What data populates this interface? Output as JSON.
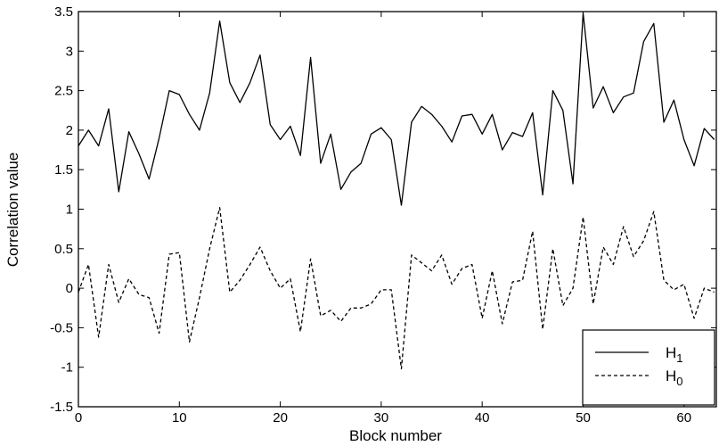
{
  "chart_data": {
    "type": "line",
    "title": "",
    "xlabel": "Block number",
    "ylabel": "Correlation value",
    "xlim": [
      0,
      64
    ],
    "ylim": [
      -1.5,
      3.5
    ],
    "xticks": [
      "0",
      "10",
      "20",
      "30",
      "40",
      "50",
      "60"
    ],
    "yticks": [
      "-1.5",
      "-1",
      "-0.5",
      "0",
      "0.5",
      "1",
      "1.5",
      "2",
      "2.5",
      "3",
      "3.5"
    ],
    "grid": false,
    "legend_position": "bottom-right",
    "x": [
      0,
      1,
      2,
      3,
      4,
      5,
      6,
      7,
      8,
      9,
      10,
      11,
      12,
      13,
      14,
      15,
      16,
      17,
      18,
      19,
      20,
      21,
      22,
      23,
      24,
      25,
      26,
      27,
      28,
      29,
      30,
      31,
      32,
      33,
      34,
      35,
      36,
      37,
      38,
      39,
      40,
      41,
      42,
      43,
      44,
      45,
      46,
      47,
      48,
      49,
      50,
      51,
      52,
      53,
      54,
      55,
      56,
      57,
      58,
      59,
      60,
      61,
      62,
      63
    ],
    "series": [
      {
        "name": "H",
        "subscript": "1",
        "style": "solid",
        "values": [
          1.8,
          2.0,
          1.8,
          2.27,
          1.22,
          1.98,
          1.7,
          1.38,
          1.9,
          2.5,
          2.45,
          2.2,
          2.0,
          2.47,
          3.38,
          2.6,
          2.35,
          2.6,
          2.95,
          2.07,
          1.88,
          2.05,
          1.68,
          2.92,
          1.58,
          1.95,
          1.25,
          1.47,
          1.58,
          1.95,
          2.03,
          1.88,
          1.05,
          2.1,
          2.3,
          2.2,
          2.05,
          1.85,
          2.18,
          2.2,
          1.95,
          2.2,
          1.75,
          1.97,
          1.92,
          2.22,
          1.18,
          2.5,
          2.25,
          1.32,
          3.48,
          2.28,
          2.55,
          2.22,
          2.42,
          2.47,
          3.12,
          3.35,
          2.1,
          2.38,
          1.88,
          1.55,
          2.02,
          1.88
        ]
      },
      {
        "name": "H",
        "subscript": "0",
        "style": "dashed",
        "values": [
          -0.05,
          0.3,
          -0.62,
          0.3,
          -0.18,
          0.12,
          -0.08,
          -0.12,
          -0.57,
          0.43,
          0.45,
          -0.68,
          -0.12,
          0.5,
          1.02,
          -0.05,
          0.1,
          0.3,
          0.52,
          0.22,
          0.0,
          0.12,
          -0.55,
          0.37,
          -0.35,
          -0.28,
          -0.42,
          -0.25,
          -0.25,
          -0.2,
          -0.02,
          -0.02,
          -1.02,
          0.42,
          0.32,
          0.22,
          0.42,
          0.05,
          0.25,
          0.3,
          -0.38,
          0.22,
          -0.45,
          0.08,
          0.1,
          0.72,
          -0.52,
          0.5,
          -0.22,
          0.0,
          0.9,
          -0.2,
          0.52,
          0.3,
          0.78,
          0.4,
          0.6,
          0.97,
          0.1,
          -0.02,
          0.05,
          -0.38,
          0.0,
          -0.05
        ]
      }
    ]
  }
}
